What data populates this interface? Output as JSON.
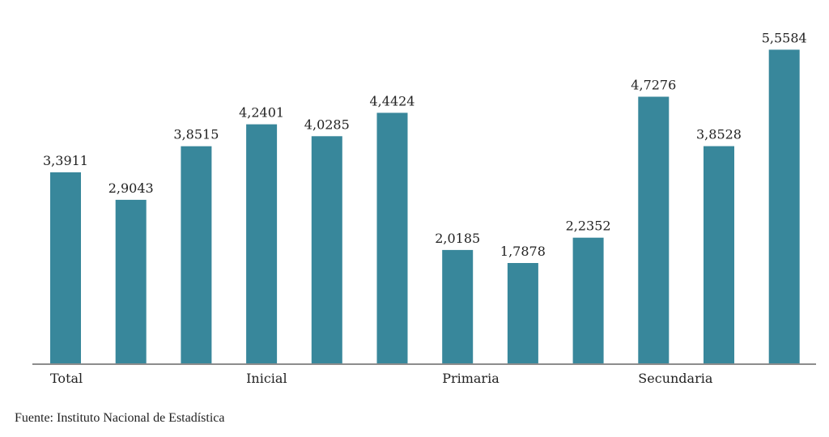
{
  "chart_data": {
    "type": "bar",
    "title": "",
    "xlabel": "",
    "ylabel": "",
    "ylim": [
      0,
      5.85
    ],
    "grid": false,
    "legend": "none",
    "bar_color": "#38879b",
    "axis_color": "#8c8c8c",
    "values": [
      3.3911,
      2.9043,
      3.8515,
      4.2401,
      4.0285,
      4.4424,
      2.0185,
      1.7878,
      2.2352,
      4.7276,
      3.8528,
      5.5584
    ],
    "value_labels": [
      "3,3911",
      "2,9043",
      "3,8515",
      "4,2401",
      "4,0285",
      "4,4424",
      "2,0185",
      "1,7878",
      "2,2352",
      "4,7276",
      "3,8528",
      "5,5584"
    ],
    "groups": [
      {
        "label": "Total",
        "start": 0,
        "span": 3
      },
      {
        "label": "Inicial",
        "start": 3,
        "span": 3
      },
      {
        "label": "Primaria",
        "start": 6,
        "span": 3
      },
      {
        "label": "Secundaria",
        "start": 9,
        "span": 3
      }
    ]
  },
  "source": "Fuente: Instituto Nacional de Estadística"
}
